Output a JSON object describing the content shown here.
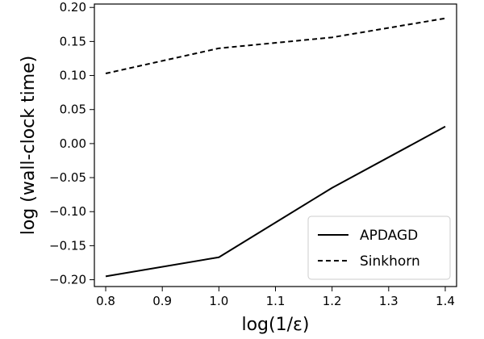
{
  "chart_data": {
    "type": "line",
    "title": "",
    "xlabel": "log(1/ε)",
    "ylabel": "log (wall-clock time)",
    "xlim": [
      0.78,
      1.42
    ],
    "ylim": [
      -0.21,
      0.205
    ],
    "xticks": [
      0.8,
      0.9,
      1.0,
      1.1,
      1.2,
      1.3,
      1.4
    ],
    "yticks": [
      -0.2,
      -0.15,
      -0.1,
      -0.05,
      0.0,
      0.05,
      0.1,
      0.15,
      0.2
    ],
    "xtick_labels": [
      "0.8",
      "0.9",
      "1.0",
      "1.1",
      "1.2",
      "1.3",
      "1.4"
    ],
    "ytick_labels": [
      "−0.20",
      "−0.15",
      "−0.10",
      "−0.05",
      "0.00",
      "0.05",
      "0.10",
      "0.15",
      "0.20"
    ],
    "grid": false,
    "legend_position": "lower-right",
    "series": [
      {
        "name": "APDAGD",
        "style": "solid",
        "color": "#000000",
        "x": [
          0.8,
          1.0,
          1.2,
          1.4
        ],
        "y": [
          -0.195,
          -0.167,
          -0.065,
          0.025
        ]
      },
      {
        "name": "Sinkhorn",
        "style": "dashed",
        "color": "#000000",
        "x": [
          0.8,
          1.0,
          1.2,
          1.4
        ],
        "y": [
          0.103,
          0.14,
          0.156,
          0.184
        ]
      }
    ]
  }
}
